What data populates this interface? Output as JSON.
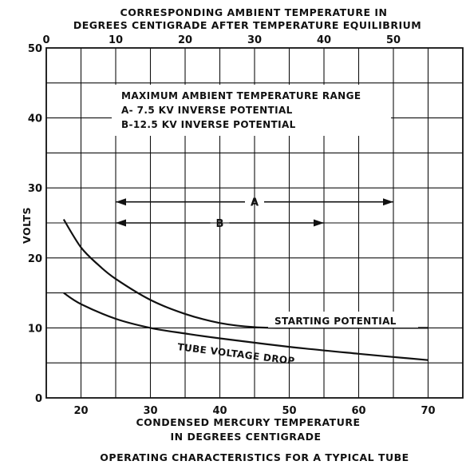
{
  "chart_data": {
    "type": "line",
    "top_axis_title": [
      "CORRESPONDING AMBIENT TEMPERATURE IN",
      "DEGREES CENTIGRADE AFTER TEMPERATURE EQUILIBRIUM"
    ],
    "top_axis_ticks": [
      0,
      10,
      20,
      30,
      40,
      50
    ],
    "top_axis_range": [
      0,
      50
    ],
    "xlabel": [
      "CONDENSED MERCURY  TEMPERATURE",
      "IN DEGREES CENTIGRADE"
    ],
    "x_ticks": [
      20,
      30,
      40,
      50,
      60,
      70
    ],
    "xlim": [
      15,
      75
    ],
    "ylabel": "VOLTS",
    "y_ticks": [
      0,
      10,
      20,
      30,
      40,
      50
    ],
    "ylim": [
      0,
      50
    ],
    "grid": true,
    "caption": "OPERATING CHARACTERISTICS FOR A TYPICAL TUBE",
    "legend_box": {
      "title": "MAXIMUM AMBIENT TEMPERATURE RANGE",
      "line_a": "A-  7.5 KV  INVERSE  POTENTIAL",
      "line_b": "B-12.5 KV  INVERSE  POTENTIAL"
    },
    "ranges": [
      {
        "name": "A",
        "x": [
          25,
          65
        ],
        "y": 28
      },
      {
        "name": "B",
        "x": [
          25,
          55
        ],
        "y": 25
      }
    ],
    "series": [
      {
        "name": "STARTING  POTENTIAL",
        "x": [
          17.5,
          20,
          22.5,
          25,
          30,
          35,
          40,
          45,
          50,
          60,
          70
        ],
        "y": [
          25.5,
          21.5,
          19,
          17,
          14,
          12,
          10.7,
          10.1,
          10,
          10,
          10
        ]
      },
      {
        "name": "TUBE  VOLTAGE  DROP",
        "x": [
          17.5,
          20,
          25,
          30,
          35,
          40,
          50,
          60,
          70
        ],
        "y": [
          15,
          13.4,
          11.3,
          10,
          9.2,
          8.5,
          7.3,
          6.3,
          5.4
        ]
      }
    ]
  }
}
